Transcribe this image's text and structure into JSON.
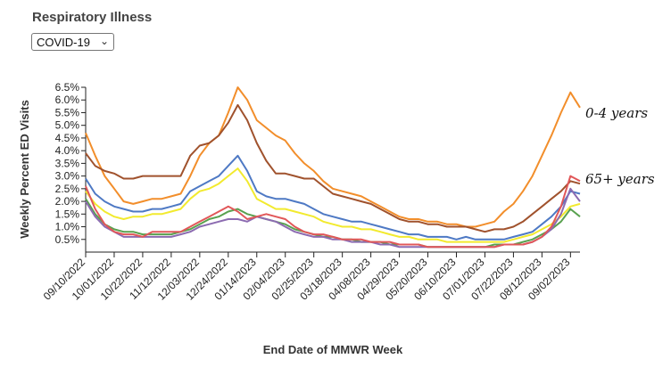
{
  "filter": {
    "title": "Respiratory Illness",
    "select_value": "COVID-19",
    "chevron_icon": "chevron-down-icon"
  },
  "chart_data": {
    "type": "line",
    "title": "",
    "xlabel": "End Date of MMWR Week",
    "ylabel": "Weekly Percent ED Visits",
    "ylim": [
      0.0,
      6.5
    ],
    "y_ticks": [
      "0.5%",
      "1.0%",
      "1.5%",
      "2.0%",
      "2.5%",
      "3.0%",
      "3.5%",
      "4.0%",
      "4.5%",
      "5.0%",
      "5.5%",
      "6.0%",
      "6.5%"
    ],
    "x_tick_labels": [
      "09/10/2022",
      "10/01/2022",
      "10/22/2022",
      "11/12/2022",
      "12/03/2022",
      "12/24/2022",
      "01/14/2023",
      "02/04/2023",
      "02/25/2023",
      "03/18/2023",
      "04/08/2023",
      "04/29/2023",
      "05/20/2023",
      "06/10/2023",
      "07/01/2023",
      "07/22/2023",
      "08/12/2023",
      "09/02/2023"
    ],
    "x_week_count": 53,
    "grid": false,
    "annotations": [
      "0-4 years",
      "65+ years"
    ],
    "series": [
      {
        "color": "#f28e2b",
        "values": [
          4.7,
          3.8,
          3.0,
          2.5,
          2.0,
          1.9,
          2.0,
          2.1,
          2.1,
          2.2,
          2.3,
          3.0,
          3.8,
          4.3,
          4.6,
          5.5,
          6.5,
          6.0,
          5.2,
          4.9,
          4.6,
          4.4,
          3.9,
          3.5,
          3.2,
          2.8,
          2.5,
          2.4,
          2.3,
          2.2,
          2.0,
          1.8,
          1.6,
          1.4,
          1.3,
          1.3,
          1.2,
          1.2,
          1.1,
          1.1,
          1.0,
          1.0,
          1.1,
          1.2,
          1.6,
          1.9,
          2.4,
          3.0,
          3.8,
          4.6,
          5.5,
          6.3,
          5.7
        ]
      },
      {
        "color": "#a0522d",
        "values": [
          3.9,
          3.4,
          3.2,
          3.1,
          2.9,
          2.9,
          3.0,
          3.0,
          3.0,
          3.0,
          3.0,
          3.8,
          4.2,
          4.3,
          4.6,
          5.1,
          5.8,
          5.2,
          4.3,
          3.6,
          3.1,
          3.1,
          3.0,
          2.9,
          2.9,
          2.6,
          2.3,
          2.2,
          2.1,
          2.0,
          1.9,
          1.7,
          1.5,
          1.3,
          1.2,
          1.2,
          1.1,
          1.1,
          1.0,
          1.0,
          1.0,
          0.9,
          0.8,
          0.9,
          0.9,
          1.0,
          1.2,
          1.5,
          1.8,
          2.1,
          2.4,
          2.8,
          2.7
        ]
      },
      {
        "color": "#4e79c4",
        "values": [
          2.9,
          2.3,
          2.0,
          1.8,
          1.7,
          1.6,
          1.6,
          1.7,
          1.7,
          1.8,
          1.9,
          2.4,
          2.6,
          2.8,
          3.0,
          3.4,
          3.8,
          3.2,
          2.4,
          2.2,
          2.1,
          2.1,
          2.0,
          1.9,
          1.7,
          1.5,
          1.4,
          1.3,
          1.2,
          1.2,
          1.1,
          1.0,
          0.9,
          0.8,
          0.7,
          0.7,
          0.6,
          0.6,
          0.6,
          0.5,
          0.6,
          0.5,
          0.5,
          0.5,
          0.5,
          0.6,
          0.7,
          0.8,
          1.1,
          1.4,
          1.8,
          2.4,
          2.3
        ]
      },
      {
        "color": "#f2ea2e",
        "values": [
          2.4,
          1.9,
          1.6,
          1.4,
          1.3,
          1.4,
          1.4,
          1.5,
          1.5,
          1.6,
          1.7,
          2.1,
          2.4,
          2.5,
          2.7,
          3.0,
          3.3,
          2.8,
          2.1,
          1.9,
          1.7,
          1.7,
          1.6,
          1.5,
          1.4,
          1.2,
          1.1,
          1.0,
          1.0,
          0.9,
          0.9,
          0.8,
          0.7,
          0.6,
          0.6,
          0.5,
          0.5,
          0.5,
          0.4,
          0.4,
          0.4,
          0.4,
          0.4,
          0.4,
          0.4,
          0.5,
          0.6,
          0.7,
          0.9,
          1.1,
          1.4,
          1.8,
          1.9
        ]
      },
      {
        "color": "#59a14f",
        "values": [
          2.1,
          1.5,
          1.1,
          0.9,
          0.8,
          0.8,
          0.7,
          0.7,
          0.7,
          0.7,
          0.8,
          0.9,
          1.1,
          1.3,
          1.4,
          1.6,
          1.7,
          1.5,
          1.4,
          1.3,
          1.2,
          1.1,
          0.9,
          0.8,
          0.7,
          0.6,
          0.6,
          0.5,
          0.5,
          0.4,
          0.4,
          0.4,
          0.3,
          0.3,
          0.3,
          0.3,
          0.2,
          0.2,
          0.2,
          0.2,
          0.2,
          0.2,
          0.2,
          0.3,
          0.3,
          0.3,
          0.4,
          0.5,
          0.7,
          0.9,
          1.2,
          1.7,
          1.4
        ]
      },
      {
        "color": "#8c6bb1",
        "values": [
          2.0,
          1.4,
          1.0,
          0.8,
          0.6,
          0.6,
          0.6,
          0.6,
          0.6,
          0.6,
          0.7,
          0.8,
          1.0,
          1.1,
          1.2,
          1.3,
          1.3,
          1.2,
          1.4,
          1.3,
          1.2,
          1.0,
          0.8,
          0.7,
          0.6,
          0.6,
          0.5,
          0.5,
          0.4,
          0.4,
          0.4,
          0.3,
          0.3,
          0.2,
          0.2,
          0.2,
          0.2,
          0.2,
          0.2,
          0.2,
          0.2,
          0.2,
          0.2,
          0.2,
          0.3,
          0.3,
          0.3,
          0.4,
          0.6,
          0.9,
          1.5,
          2.5,
          2.0
        ]
      },
      {
        "color": "#e15759",
        "values": [
          2.6,
          1.7,
          1.1,
          0.8,
          0.7,
          0.7,
          0.6,
          0.8,
          0.8,
          0.8,
          0.8,
          1.0,
          1.2,
          1.4,
          1.6,
          1.8,
          1.6,
          1.3,
          1.4,
          1.5,
          1.4,
          1.3,
          1.0,
          0.8,
          0.7,
          0.7,
          0.6,
          0.5,
          0.5,
          0.5,
          0.4,
          0.4,
          0.4,
          0.3,
          0.3,
          0.3,
          0.2,
          0.2,
          0.2,
          0.2,
          0.2,
          0.2,
          0.2,
          0.2,
          0.3,
          0.3,
          0.3,
          0.4,
          0.6,
          1.0,
          1.8,
          3.0,
          2.8
        ]
      }
    ]
  }
}
